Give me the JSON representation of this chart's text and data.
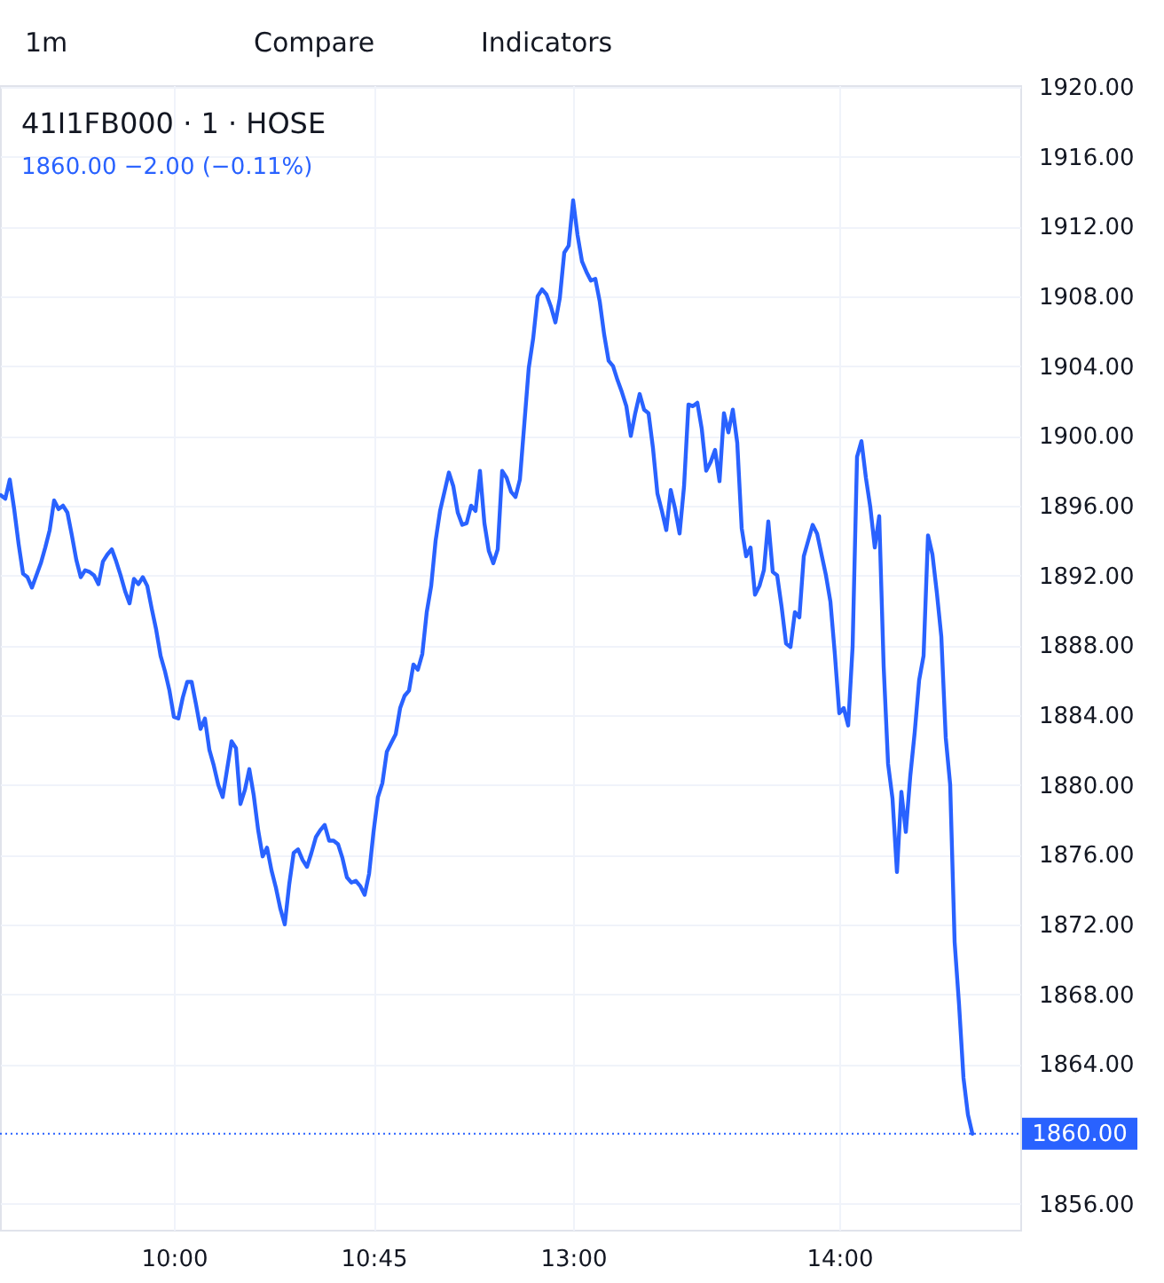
{
  "chart_data": {
    "type": "line",
    "title": "41I1FB000 · 1 · HOSE",
    "subtitle": "1860.00 −2.00 (−0.11%)",
    "categories": [
      null,
      null,
      null,
      null,
      null,
      null,
      null,
      null,
      null,
      null,
      null,
      null,
      null,
      null,
      null,
      null,
      null,
      null,
      null,
      null,
      null,
      null,
      null,
      null,
      null,
      null,
      null,
      null,
      null,
      null,
      null,
      null,
      null,
      null,
      null,
      null,
      null,
      null,
      null,
      "10:00",
      null,
      null,
      null,
      null,
      null,
      null,
      null,
      null,
      null,
      null,
      null,
      null,
      null,
      null,
      null,
      null,
      null,
      null,
      null,
      null,
      null,
      null,
      null,
      null,
      null,
      null,
      null,
      null,
      null,
      null,
      null,
      null,
      null,
      null,
      null,
      null,
      null,
      null,
      null,
      null,
      null,
      null,
      null,
      null,
      "10:45",
      null,
      null,
      null,
      null,
      null,
      null,
      null,
      null,
      null,
      null,
      null,
      null,
      null,
      null,
      null,
      null,
      null,
      null,
      null,
      null,
      null,
      null,
      null,
      null,
      null,
      null,
      null,
      null,
      null,
      null,
      null,
      null,
      null,
      null,
      null,
      null,
      null,
      null,
      null,
      null,
      null,
      null,
      null,
      null,
      "13:00",
      null,
      null,
      null,
      null,
      null,
      null,
      null,
      null,
      null,
      null,
      null,
      null,
      null,
      null,
      null,
      null,
      null,
      null,
      null,
      null,
      null,
      null,
      null,
      null,
      null,
      null,
      null,
      null,
      null,
      null,
      null,
      null,
      null,
      null,
      null,
      null,
      null,
      null,
      null,
      null,
      null,
      null,
      null,
      null,
      null,
      null,
      null,
      null,
      null,
      null,
      null,
      null,
      null,
      null,
      null,
      null,
      null,
      null,
      null,
      "14:00",
      null,
      null,
      null,
      null,
      null,
      null,
      null,
      null,
      null,
      null,
      null,
      null,
      null,
      null,
      null,
      null,
      null,
      null,
      null,
      null,
      null,
      null,
      null,
      null,
      null,
      null,
      null,
      null,
      null,
      null
    ],
    "series": [
      {
        "color": "#2962ff",
        "values": [
          1896.6,
          1896.4,
          1897.5,
          1895.8,
          1893.8,
          1892.1,
          1891.9,
          1891.3,
          1892.0,
          1892.7,
          1893.6,
          1894.6,
          1896.3,
          1895.8,
          1896.0,
          1895.6,
          1894.3,
          1892.9,
          1891.9,
          1892.3,
          1892.2,
          1892.0,
          1891.5,
          1892.8,
          1893.2,
          1893.5,
          1892.8,
          1892.0,
          1891.1,
          1890.4,
          1891.8,
          1891.5,
          1891.9,
          1891.4,
          1890.1,
          1888.9,
          1887.4,
          1886.5,
          1885.4,
          1883.9,
          1883.8,
          1885.0,
          1885.9,
          1885.9,
          1884.6,
          1883.2,
          1883.8,
          1882.0,
          1881.1,
          1880.0,
          1879.3,
          1880.9,
          1882.5,
          1882.1,
          1878.9,
          1879.7,
          1880.9,
          1879.4,
          1877.4,
          1875.9,
          1876.4,
          1875.1,
          1874.1,
          1872.9,
          1872.0,
          1874.3,
          1876.1,
          1876.3,
          1875.7,
          1875.3,
          1876.1,
          1877.0,
          1877.4,
          1877.7,
          1876.8,
          1876.8,
          1876.6,
          1875.8,
          1874.7,
          1874.4,
          1874.5,
          1874.2,
          1873.7,
          1874.9,
          1877.3,
          1879.3,
          1880.1,
          1881.9,
          1882.4,
          1882.9,
          1884.4,
          1885.1,
          1885.4,
          1886.9,
          1886.6,
          1887.5,
          1889.9,
          1891.4,
          1894.0,
          1895.7,
          1896.8,
          1897.9,
          1897.1,
          1895.6,
          1894.9,
          1895.0,
          1896.0,
          1895.7,
          1898.0,
          1895.0,
          1893.4,
          1892.7,
          1893.5,
          1898.0,
          1897.6,
          1896.8,
          1896.5,
          1897.5,
          1900.7,
          1903.9,
          1905.6,
          1908.0,
          1908.4,
          1908.1,
          1907.4,
          1906.5,
          1907.9,
          1910.5,
          1910.9,
          1913.5,
          1911.5,
          1910.0,
          1909.4,
          1908.9,
          1909.0,
          1907.7,
          1905.8,
          1904.3,
          1904.0,
          1903.2,
          1902.5,
          1901.7,
          1900.0,
          1901.3,
          1902.4,
          1901.5,
          1901.3,
          1899.3,
          1896.7,
          1895.7,
          1894.6,
          1896.9,
          1895.8,
          1894.4,
          1897.1,
          1901.8,
          1901.7,
          1901.9,
          1900.4,
          1898.0,
          1898.5,
          1899.2,
          1897.4,
          1901.3,
          1900.2,
          1901.5,
          1899.6,
          1894.7,
          1893.1,
          1893.6,
          1890.9,
          1891.4,
          1892.3,
          1895.1,
          1892.2,
          1892.0,
          1890.2,
          1888.1,
          1887.9,
          1889.9,
          1889.6,
          1893.1,
          1894.0,
          1894.9,
          1894.4,
          1893.2,
          1892.0,
          1890.5,
          1887.5,
          1884.1,
          1884.4,
          1883.4,
          1887.9,
          1898.8,
          1899.7,
          1897.6,
          1895.9,
          1893.6,
          1895.4,
          1886.8,
          1881.2,
          1879.2,
          1875.0,
          1879.6,
          1877.3,
          1880.5,
          1883.0,
          1886.0,
          1887.4,
          1894.3,
          1893.2,
          1891.0,
          1888.5,
          1882.7,
          1880.0,
          1871.0,
          1867.4,
          1863.2,
          1861.1,
          1860.0
        ]
      }
    ],
    "ylim": [
      1854.5,
      1920.1
    ],
    "yticks": [
      {
        "value": 1856,
        "label": "1856.00"
      },
      {
        "value": 1864,
        "label": "1864.00"
      },
      {
        "value": 1868,
        "label": "1868.00"
      },
      {
        "value": 1872,
        "label": "1872.00"
      },
      {
        "value": 1876,
        "label": "1876.00"
      },
      {
        "value": 1880,
        "label": "1880.00"
      },
      {
        "value": 1884,
        "label": "1884.00"
      },
      {
        "value": 1888,
        "label": "1888.00"
      },
      {
        "value": 1892,
        "label": "1892.00"
      },
      {
        "value": 1896,
        "label": "1896.00"
      },
      {
        "value": 1900,
        "label": "1900.00"
      },
      {
        "value": 1904,
        "label": "1904.00"
      },
      {
        "value": 1908,
        "label": "1908.00"
      },
      {
        "value": 1912,
        "label": "1912.00"
      },
      {
        "value": 1916,
        "label": "1916.00"
      },
      {
        "value": 1920,
        "label": "1920.00"
      }
    ],
    "grid": true,
    "line_style": "solid",
    "ref_lines": [
      {
        "axis": "y",
        "value": 1860,
        "label": "1860.00",
        "color": "#2962ff",
        "line_style": "dotted"
      }
    ],
    "annotations": [
      "1m",
      "Compare",
      "Indicators"
    ]
  }
}
